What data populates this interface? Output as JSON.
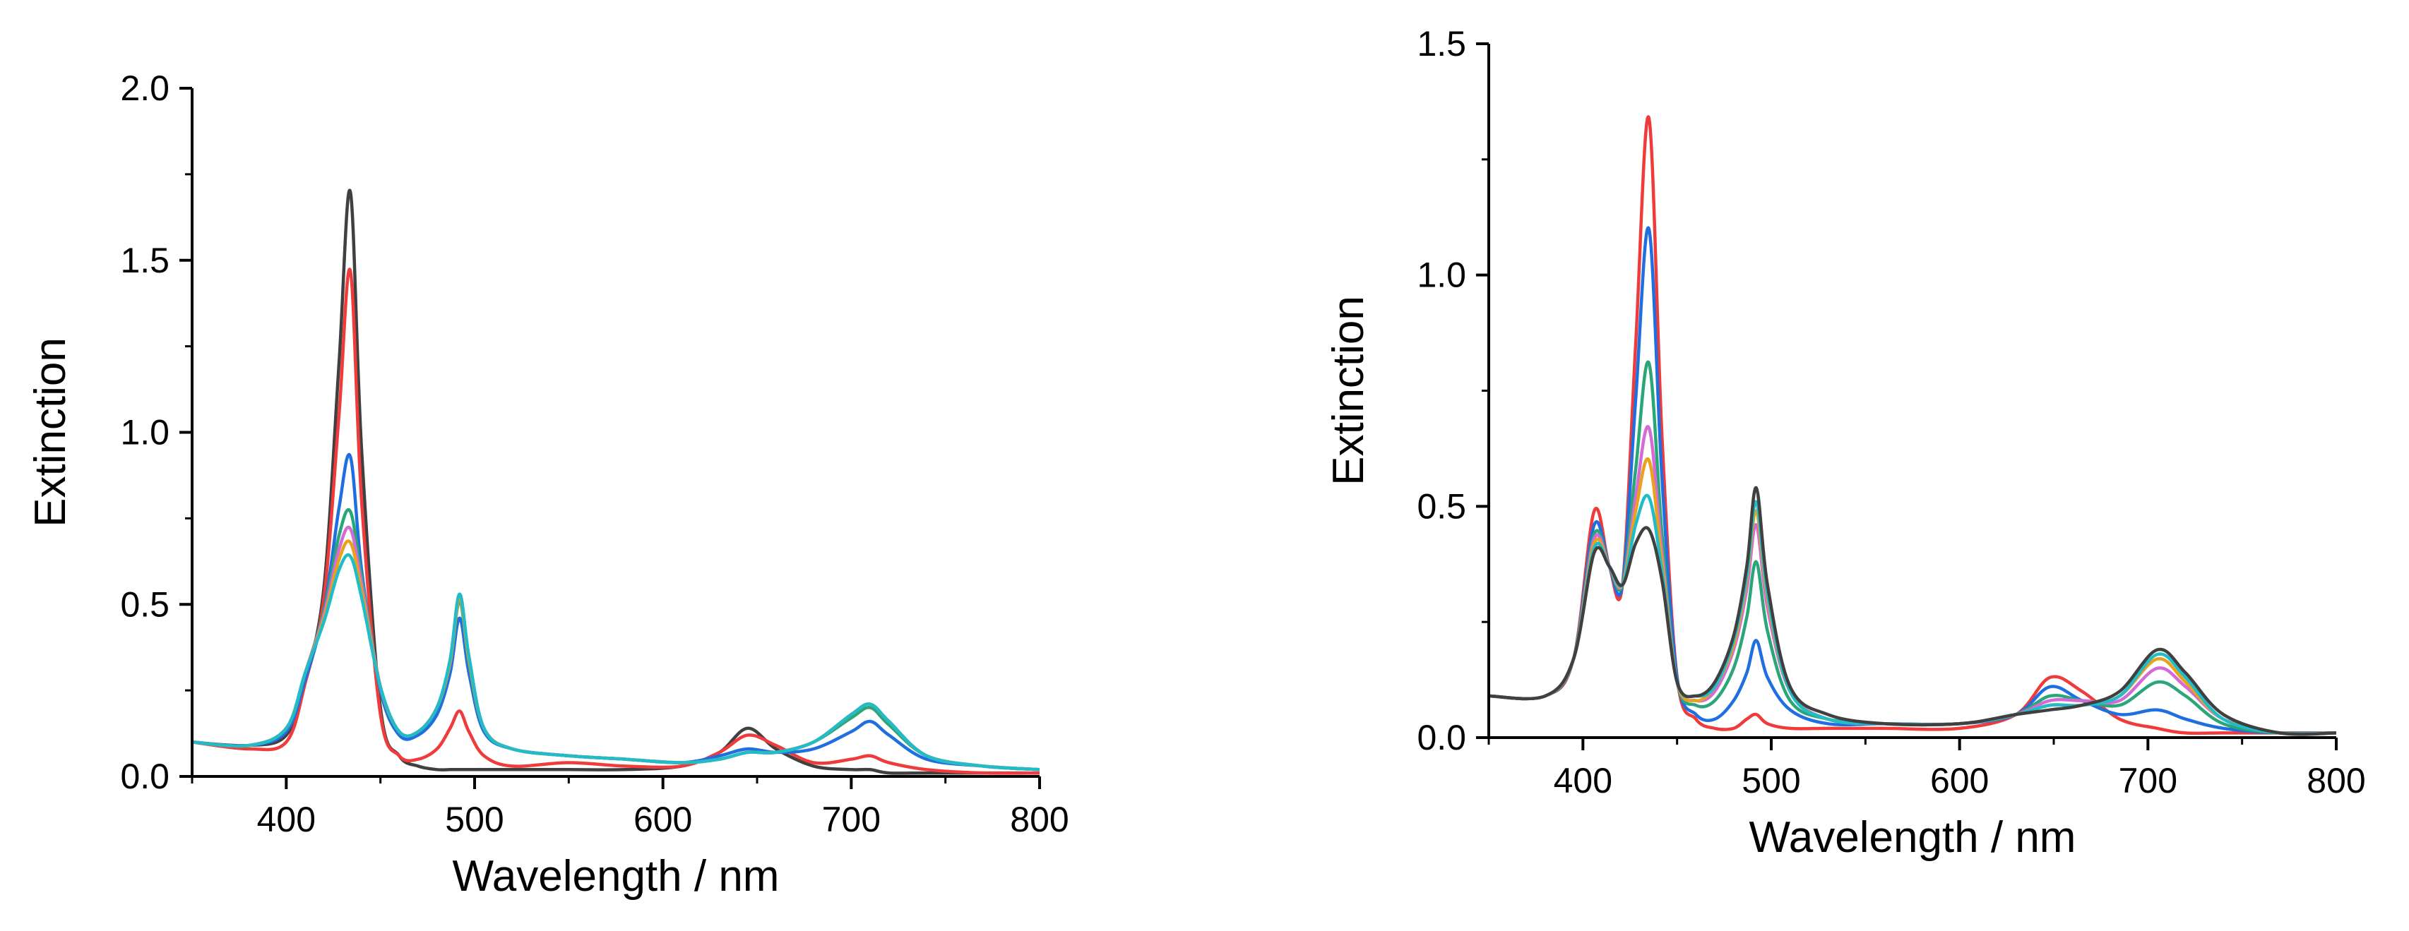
{
  "chart_data": [
    {
      "type": "line",
      "title": "",
      "xlabel": "Wavelength / nm",
      "ylabel": "Extinction",
      "xlim": [
        350,
        800
      ],
      "ylim": [
        0,
        2.0
      ],
      "xticks": [
        "400",
        "500",
        "600",
        "700",
        "800"
      ],
      "yticks": [
        "0.0",
        "0.5",
        "1.0",
        "1.5",
        "2.0"
      ],
      "x": [
        350,
        380,
        400,
        410,
        420,
        428,
        434,
        440,
        450,
        460,
        470,
        480,
        487,
        492,
        497,
        505,
        520,
        550,
        580,
        610,
        630,
        645,
        660,
        680,
        700,
        710,
        720,
        740,
        770,
        800
      ],
      "series": [
        {
          "name": "black",
          "color": "#404040",
          "values": [
            0.1,
            0.09,
            0.12,
            0.28,
            0.55,
            1.2,
            1.7,
            0.95,
            0.2,
            0.06,
            0.03,
            0.02,
            0.02,
            0.02,
            0.02,
            0.02,
            0.02,
            0.02,
            0.02,
            0.03,
            0.07,
            0.14,
            0.08,
            0.03,
            0.02,
            0.02,
            0.01,
            0.01,
            0.01,
            0.01
          ]
        },
        {
          "name": "red",
          "color": "#ef3b3b",
          "values": [
            0.1,
            0.08,
            0.1,
            0.27,
            0.52,
            1.05,
            1.47,
            0.8,
            0.18,
            0.06,
            0.05,
            0.08,
            0.14,
            0.19,
            0.13,
            0.06,
            0.03,
            0.04,
            0.03,
            0.03,
            0.07,
            0.12,
            0.09,
            0.04,
            0.05,
            0.06,
            0.04,
            0.02,
            0.01,
            0.01
          ]
        },
        {
          "name": "blue",
          "color": "#1f6fe0",
          "values": [
            0.1,
            0.09,
            0.13,
            0.28,
            0.48,
            0.78,
            0.93,
            0.6,
            0.25,
            0.12,
            0.12,
            0.18,
            0.3,
            0.46,
            0.3,
            0.13,
            0.08,
            0.06,
            0.05,
            0.04,
            0.06,
            0.08,
            0.07,
            0.08,
            0.13,
            0.16,
            0.12,
            0.05,
            0.03,
            0.02
          ]
        },
        {
          "name": "green",
          "color": "#2aa678",
          "values": [
            0.1,
            0.09,
            0.14,
            0.3,
            0.48,
            0.7,
            0.77,
            0.58,
            0.26,
            0.13,
            0.13,
            0.2,
            0.33,
            0.51,
            0.33,
            0.14,
            0.08,
            0.06,
            0.05,
            0.04,
            0.05,
            0.07,
            0.07,
            0.1,
            0.17,
            0.2,
            0.15,
            0.06,
            0.03,
            0.02
          ]
        },
        {
          "name": "magenta",
          "color": "#d36ad6",
          "values": [
            0.1,
            0.09,
            0.14,
            0.3,
            0.47,
            0.66,
            0.72,
            0.56,
            0.26,
            0.13,
            0.13,
            0.2,
            0.33,
            0.52,
            0.34,
            0.14,
            0.08,
            0.06,
            0.05,
            0.04,
            0.05,
            0.07,
            0.07,
            0.1,
            0.18,
            0.21,
            0.16,
            0.06,
            0.03,
            0.02
          ]
        },
        {
          "name": "orange",
          "color": "#e8a21c",
          "values": [
            0.1,
            0.09,
            0.14,
            0.3,
            0.46,
            0.63,
            0.68,
            0.54,
            0.26,
            0.13,
            0.13,
            0.2,
            0.33,
            0.52,
            0.34,
            0.14,
            0.08,
            0.06,
            0.05,
            0.04,
            0.05,
            0.07,
            0.07,
            0.1,
            0.18,
            0.21,
            0.16,
            0.06,
            0.03,
            0.02
          ]
        },
        {
          "name": "cyan",
          "color": "#22bcc8",
          "values": [
            0.1,
            0.09,
            0.14,
            0.3,
            0.45,
            0.6,
            0.64,
            0.52,
            0.26,
            0.13,
            0.13,
            0.2,
            0.34,
            0.53,
            0.35,
            0.14,
            0.08,
            0.06,
            0.05,
            0.04,
            0.05,
            0.07,
            0.07,
            0.1,
            0.18,
            0.21,
            0.16,
            0.06,
            0.03,
            0.02
          ]
        }
      ]
    },
    {
      "type": "line",
      "title": "",
      "xlabel": "Wavelength / nm",
      "ylabel": "Extinction",
      "xlim": [
        350,
        800
      ],
      "ylim": [
        0,
        1.5
      ],
      "xticks": [
        "400",
        "500",
        "600",
        "700",
        "800"
      ],
      "yticks": [
        "0.0",
        "0.5",
        "1.0",
        "1.5"
      ],
      "x": [
        350,
        380,
        395,
        406,
        414,
        421,
        428,
        435,
        442,
        450,
        460,
        470,
        480,
        487,
        492,
        498,
        510,
        530,
        560,
        600,
        630,
        648,
        665,
        685,
        705,
        720,
        740,
        770,
        800
      ],
      "series": [
        {
          "name": "red",
          "color": "#ef3b3b",
          "values": [
            0.09,
            0.09,
            0.17,
            0.49,
            0.37,
            0.33,
            0.85,
            1.34,
            0.65,
            0.13,
            0.04,
            0.02,
            0.02,
            0.04,
            0.05,
            0.03,
            0.02,
            0.02,
            0.02,
            0.02,
            0.05,
            0.13,
            0.1,
            0.04,
            0.02,
            0.01,
            0.01,
            0.01,
            0.01
          ]
        },
        {
          "name": "blue",
          "color": "#1f6fe0",
          "values": [
            0.09,
            0.09,
            0.17,
            0.46,
            0.37,
            0.33,
            0.73,
            1.1,
            0.56,
            0.13,
            0.05,
            0.04,
            0.08,
            0.14,
            0.21,
            0.13,
            0.06,
            0.03,
            0.03,
            0.03,
            0.05,
            0.11,
            0.08,
            0.05,
            0.06,
            0.04,
            0.02,
            0.01,
            0.01
          ]
        },
        {
          "name": "green",
          "color": "#2aa678",
          "values": [
            0.09,
            0.09,
            0.17,
            0.44,
            0.37,
            0.33,
            0.58,
            0.81,
            0.44,
            0.12,
            0.07,
            0.08,
            0.15,
            0.26,
            0.38,
            0.23,
            0.08,
            0.04,
            0.03,
            0.03,
            0.05,
            0.09,
            0.08,
            0.07,
            0.12,
            0.09,
            0.03,
            0.01,
            0.01
          ]
        },
        {
          "name": "magenta",
          "color": "#d36ad6",
          "values": [
            0.09,
            0.09,
            0.17,
            0.43,
            0.37,
            0.33,
            0.52,
            0.67,
            0.4,
            0.12,
            0.08,
            0.1,
            0.19,
            0.32,
            0.46,
            0.28,
            0.1,
            0.04,
            0.03,
            0.03,
            0.05,
            0.08,
            0.08,
            0.08,
            0.15,
            0.11,
            0.04,
            0.01,
            0.01
          ]
        },
        {
          "name": "orange",
          "color": "#e8a21c",
          "values": [
            0.09,
            0.09,
            0.17,
            0.42,
            0.37,
            0.33,
            0.49,
            0.6,
            0.38,
            0.12,
            0.08,
            0.11,
            0.2,
            0.34,
            0.49,
            0.3,
            0.1,
            0.04,
            0.03,
            0.03,
            0.05,
            0.07,
            0.07,
            0.09,
            0.17,
            0.12,
            0.04,
            0.01,
            0.01
          ]
        },
        {
          "name": "cyan",
          "color": "#22bcc8",
          "values": [
            0.09,
            0.09,
            0.17,
            0.41,
            0.37,
            0.33,
            0.46,
            0.52,
            0.36,
            0.12,
            0.09,
            0.11,
            0.21,
            0.35,
            0.51,
            0.31,
            0.1,
            0.04,
            0.03,
            0.03,
            0.05,
            0.07,
            0.07,
            0.09,
            0.18,
            0.13,
            0.04,
            0.01,
            0.01
          ]
        },
        {
          "name": "black",
          "color": "#404040",
          "values": [
            0.09,
            0.09,
            0.17,
            0.4,
            0.37,
            0.33,
            0.42,
            0.45,
            0.34,
            0.12,
            0.09,
            0.12,
            0.22,
            0.37,
            0.54,
            0.33,
            0.11,
            0.05,
            0.03,
            0.03,
            0.05,
            0.06,
            0.07,
            0.1,
            0.19,
            0.14,
            0.05,
            0.01,
            0.01
          ]
        }
      ]
    }
  ]
}
